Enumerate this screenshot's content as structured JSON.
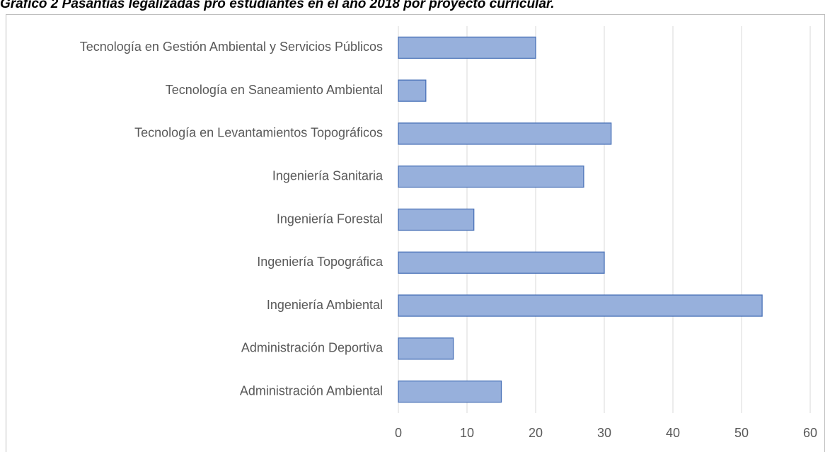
{
  "chart_data": {
    "type": "barh",
    "title": "Gráfico 2 Pasantías legalizadas pro estudiantes en el año 2018 por proyecto curricular.",
    "categories": [
      "Tecnología en Gestión Ambiental y Servicios Públicos",
      "Tecnología en Saneamiento Ambiental",
      "Tecnología en Levantamientos Topográficos",
      "Ingeniería Sanitaria",
      "Ingeniería Forestal",
      "Ingeniería Topográfica",
      "Ingeniería Ambiental",
      "Administración Deportiva",
      "Administración Ambiental"
    ],
    "values": [
      20,
      4,
      31,
      27,
      11,
      30,
      53,
      8,
      15
    ],
    "color": "#97b0dc",
    "edgecolor": "#4a72b8",
    "xlim": [
      0,
      60
    ],
    "xticks": [
      0,
      10,
      20,
      30,
      40,
      50,
      60
    ],
    "grid": true
  }
}
